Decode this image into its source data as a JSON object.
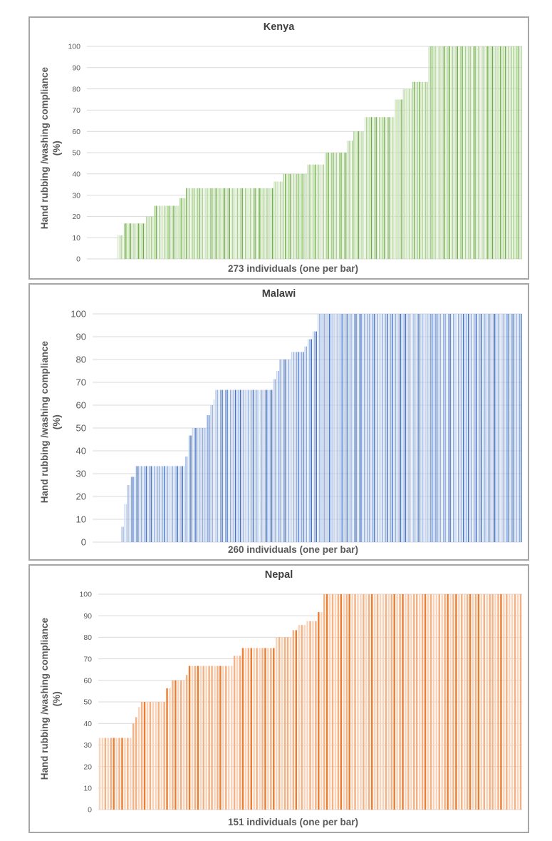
{
  "styles": {
    "background": "#ffffff",
    "panel_border_color": "#a6a6a6",
    "grid_color": "#d9d9d9",
    "title_color": "#3f3f3f",
    "axis_label_color": "#595959",
    "tick_label_color": "#595959"
  },
  "chart_data": [
    {
      "type": "bar",
      "title": "Kenya",
      "xlabel": "273 individuals (one per bar)",
      "ylabel": "Hand rubbing /washing compliance",
      "ylabel_unit": "(%)",
      "n_individuals": 273,
      "ylim": [
        0,
        100
      ],
      "ytick_step": 10,
      "yticks": [
        0,
        10,
        20,
        30,
        40,
        50,
        60,
        70,
        80,
        90,
        100
      ],
      "grid": true,
      "legend": "none",
      "bar_colors": [
        "#d4e6c6",
        "#a9d18e",
        "#70ad47"
      ],
      "note": "one bar per individual, sorted ascending; value = compliance %",
      "segments": [
        {
          "value": 0,
          "count": 19
        },
        {
          "value": 11.1,
          "count": 4
        },
        {
          "value": 16.7,
          "count": 14
        },
        {
          "value": 20,
          "count": 5
        },
        {
          "value": 25,
          "count": 16
        },
        {
          "value": 28.6,
          "count": 4
        },
        {
          "value": 33.3,
          "count": 55
        },
        {
          "value": 36.4,
          "count": 6
        },
        {
          "value": 40,
          "count": 15
        },
        {
          "value": 44.4,
          "count": 11
        },
        {
          "value": 50,
          "count": 14
        },
        {
          "value": 55.6,
          "count": 4
        },
        {
          "value": 60,
          "count": 7
        },
        {
          "value": 66.7,
          "count": 19
        },
        {
          "value": 75,
          "count": 5
        },
        {
          "value": 80,
          "count": 6
        },
        {
          "value": 83.3,
          "count": 10
        },
        {
          "value": 100,
          "count": 59
        }
      ]
    },
    {
      "type": "bar",
      "title": "Malawi",
      "xlabel": "260 individuals (one per bar)",
      "ylabel": "Hand rubbing /washing compliance",
      "ylabel_unit": "(%)",
      "n_individuals": 260,
      "ylim": [
        0,
        100
      ],
      "ytick_step": 10,
      "yticks": [
        0,
        10,
        20,
        30,
        40,
        50,
        60,
        70,
        80,
        90,
        100
      ],
      "grid": true,
      "legend": "none",
      "bar_colors": [
        "#c9d7f0",
        "#8faadc",
        "#4472c4"
      ],
      "note": "one bar per individual, sorted ascending; value = compliance %",
      "segments": [
        {
          "value": 0,
          "count": 17
        },
        {
          "value": 6.7,
          "count": 2
        },
        {
          "value": 16.7,
          "count": 2
        },
        {
          "value": 25,
          "count": 2
        },
        {
          "value": 28.6,
          "count": 3
        },
        {
          "value": 33.3,
          "count": 30
        },
        {
          "value": 37.5,
          "count": 2
        },
        {
          "value": 46.7,
          "count": 2
        },
        {
          "value": 50,
          "count": 9
        },
        {
          "value": 55.6,
          "count": 2
        },
        {
          "value": 60,
          "count": 2
        },
        {
          "value": 62.5,
          "count": 1
        },
        {
          "value": 66.7,
          "count": 35
        },
        {
          "value": 71.4,
          "count": 2
        },
        {
          "value": 75,
          "count": 2
        },
        {
          "value": 80,
          "count": 7
        },
        {
          "value": 83.3,
          "count": 8
        },
        {
          "value": 85.7,
          "count": 2
        },
        {
          "value": 88.9,
          "count": 3
        },
        {
          "value": 92.3,
          "count": 3
        },
        {
          "value": 100,
          "count": 124
        }
      ]
    },
    {
      "type": "bar",
      "title": "Nepal",
      "xlabel": "151 individuals (one per bar)",
      "ylabel": "Hand rubbing /washing compliance",
      "ylabel_unit": "(%)",
      "n_individuals": 151,
      "ylim": [
        0,
        100
      ],
      "ytick_step": 10,
      "yticks": [
        0,
        10,
        20,
        30,
        40,
        50,
        60,
        70,
        80,
        90,
        100
      ],
      "grid": true,
      "legend": "none",
      "bar_colors": [
        "#f9d4ba",
        "#f4b183",
        "#ed7d31"
      ],
      "note": "one bar per individual, sorted ascending; value = compliance %",
      "segments": [
        {
          "value": 33.3,
          "count": 12
        },
        {
          "value": 40,
          "count": 1
        },
        {
          "value": 42.9,
          "count": 1
        },
        {
          "value": 47.6,
          "count": 1
        },
        {
          "value": 50,
          "count": 9
        },
        {
          "value": 56.3,
          "count": 2
        },
        {
          "value": 60,
          "count": 5
        },
        {
          "value": 62.5,
          "count": 1
        },
        {
          "value": 66.7,
          "count": 16
        },
        {
          "value": 71.4,
          "count": 3
        },
        {
          "value": 75,
          "count": 12
        },
        {
          "value": 80,
          "count": 6
        },
        {
          "value": 83.3,
          "count": 2
        },
        {
          "value": 85.7,
          "count": 3
        },
        {
          "value": 87.5,
          "count": 4
        },
        {
          "value": 91.7,
          "count": 2
        },
        {
          "value": 100,
          "count": 71
        }
      ]
    }
  ]
}
